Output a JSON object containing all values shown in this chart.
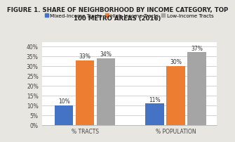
{
  "title": "FIGURE 1. SHARE OF NEIGHBORHOOD BY INCOME CATEGORY, TOP\n100 METRO AREAS (2016)",
  "groups": [
    "% TRACTS",
    "% POPULATION"
  ],
  "categories": [
    "Mixed-Income Tracts",
    "High-Income Tracts",
    "Low-Income Tracts"
  ],
  "values": {
    "% TRACTS": [
      10,
      33,
      34
    ],
    "% POPULATION": [
      11,
      30,
      37
    ]
  },
  "colors": [
    "#4472c4",
    "#ed7d31",
    "#a5a5a5"
  ],
  "ylim": [
    0,
    42
  ],
  "yticks": [
    0,
    5,
    10,
    15,
    20,
    25,
    30,
    35,
    40
  ],
  "yticklabels": [
    "0%",
    "5%",
    "10%",
    "15%",
    "20%",
    "25%",
    "30%",
    "35%",
    "40%"
  ],
  "bar_labels": {
    "% TRACTS": [
      "10%",
      "33%",
      "34%"
    ],
    "% POPULATION": [
      "11%",
      "30%",
      "37%"
    ]
  },
  "fig_bg": "#e8e6e0",
  "plot_bg": "#ffffff",
  "title_fontsize": 6.2,
  "label_fontsize": 5.5,
  "tick_fontsize": 5.5,
  "legend_fontsize": 5.2,
  "bar_width": 0.18,
  "group_centers": [
    0.32,
    1.1
  ]
}
